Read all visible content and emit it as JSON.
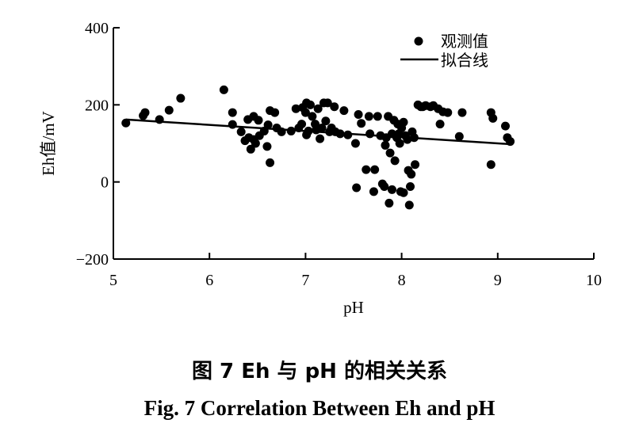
{
  "caption": {
    "chinese": "图 7    Eh 与 pH 的相关关系",
    "english": "Fig. 7    Correlation Between Eh and pH"
  },
  "chart_data": {
    "type": "scatter",
    "xlabel": "pH",
    "ylabel": "Eh值/mV",
    "xlim": [
      5,
      10
    ],
    "ylim": [
      -200,
      400
    ],
    "xticks": [
      5,
      6,
      7,
      8,
      9,
      10
    ],
    "yticks": [
      -200,
      0,
      200,
      400
    ],
    "grid": false,
    "legend_placement": "top-right",
    "series": [
      {
        "name": "观测值",
        "kind": "scatter",
        "points": [
          [
            5.13,
            153
          ],
          [
            5.31,
            172
          ],
          [
            5.33,
            180
          ],
          [
            5.48,
            162
          ],
          [
            5.58,
            186
          ],
          [
            5.7,
            217
          ],
          [
            6.15,
            239
          ],
          [
            6.24,
            180
          ],
          [
            6.24,
            149
          ],
          [
            6.33,
            130
          ],
          [
            6.37,
            107
          ],
          [
            6.4,
            162
          ],
          [
            6.41,
            115
          ],
          [
            6.43,
            85
          ],
          [
            6.46,
            170
          ],
          [
            6.46,
            110
          ],
          [
            6.48,
            100
          ],
          [
            6.51,
            160
          ],
          [
            6.52,
            120
          ],
          [
            6.57,
            132
          ],
          [
            6.6,
            92
          ],
          [
            6.61,
            148
          ],
          [
            6.63,
            50
          ],
          [
            6.63,
            185
          ],
          [
            6.68,
            180
          ],
          [
            6.7,
            140
          ],
          [
            6.75,
            130
          ],
          [
            6.85,
            132
          ],
          [
            6.9,
            190
          ],
          [
            6.93,
            140
          ],
          [
            6.96,
            150
          ],
          [
            6.97,
            193
          ],
          [
            7.0,
            180
          ],
          [
            7.01,
            205
          ],
          [
            7.01,
            122
          ],
          [
            7.03,
            132
          ],
          [
            7.05,
            200
          ],
          [
            7.07,
            170
          ],
          [
            7.1,
            150
          ],
          [
            7.11,
            135
          ],
          [
            7.13,
            190
          ],
          [
            7.15,
            112
          ],
          [
            7.17,
            140
          ],
          [
            7.19,
            205
          ],
          [
            7.21,
            158
          ],
          [
            7.23,
            205
          ],
          [
            7.25,
            130
          ],
          [
            7.27,
            140
          ],
          [
            7.3,
            195
          ],
          [
            7.31,
            130
          ],
          [
            7.36,
            125
          ],
          [
            7.4,
            185
          ],
          [
            7.44,
            122
          ],
          [
            7.52,
            100
          ],
          [
            7.53,
            -15
          ],
          [
            7.55,
            175
          ],
          [
            7.58,
            152
          ],
          [
            7.63,
            32
          ],
          [
            7.66,
            170
          ],
          [
            7.67,
            125
          ],
          [
            7.71,
            -25
          ],
          [
            7.72,
            32
          ],
          [
            7.75,
            170
          ],
          [
            7.78,
            120
          ],
          [
            7.8,
            -5
          ],
          [
            7.82,
            -12
          ],
          [
            7.83,
            95
          ],
          [
            7.84,
            115
          ],
          [
            7.86,
            170
          ],
          [
            7.87,
            -55
          ],
          [
            7.88,
            75
          ],
          [
            7.9,
            125
          ],
          [
            7.9,
            -20
          ],
          [
            7.92,
            160
          ],
          [
            7.93,
            55
          ],
          [
            7.95,
            115
          ],
          [
            7.96,
            150
          ],
          [
            7.97,
            125
          ],
          [
            7.98,
            100
          ],
          [
            7.99,
            -25
          ],
          [
            8.0,
            140
          ],
          [
            8.02,
            -28
          ],
          [
            8.02,
            155
          ],
          [
            8.04,
            120
          ],
          [
            8.06,
            110
          ],
          [
            8.07,
            30
          ],
          [
            8.08,
            -60
          ],
          [
            8.09,
            -12
          ],
          [
            8.1,
            20
          ],
          [
            8.11,
            130
          ],
          [
            8.13,
            115
          ],
          [
            8.14,
            45
          ],
          [
            8.17,
            200
          ],
          [
            8.2,
            195
          ],
          [
            8.22,
            195
          ],
          [
            8.25,
            198
          ],
          [
            8.3,
            195
          ],
          [
            8.33,
            198
          ],
          [
            8.38,
            190
          ],
          [
            8.4,
            150
          ],
          [
            8.43,
            182
          ],
          [
            8.48,
            180
          ],
          [
            8.6,
            118
          ],
          [
            8.63,
            180
          ],
          [
            8.93,
            180
          ],
          [
            8.93,
            45
          ],
          [
            8.95,
            165
          ],
          [
            9.08,
            145
          ],
          [
            9.1,
            115
          ],
          [
            9.13,
            105
          ]
        ]
      },
      {
        "name": "拟合线",
        "kind": "line",
        "points": [
          [
            5.13,
            162
          ],
          [
            9.13,
            98
          ]
        ]
      }
    ]
  }
}
